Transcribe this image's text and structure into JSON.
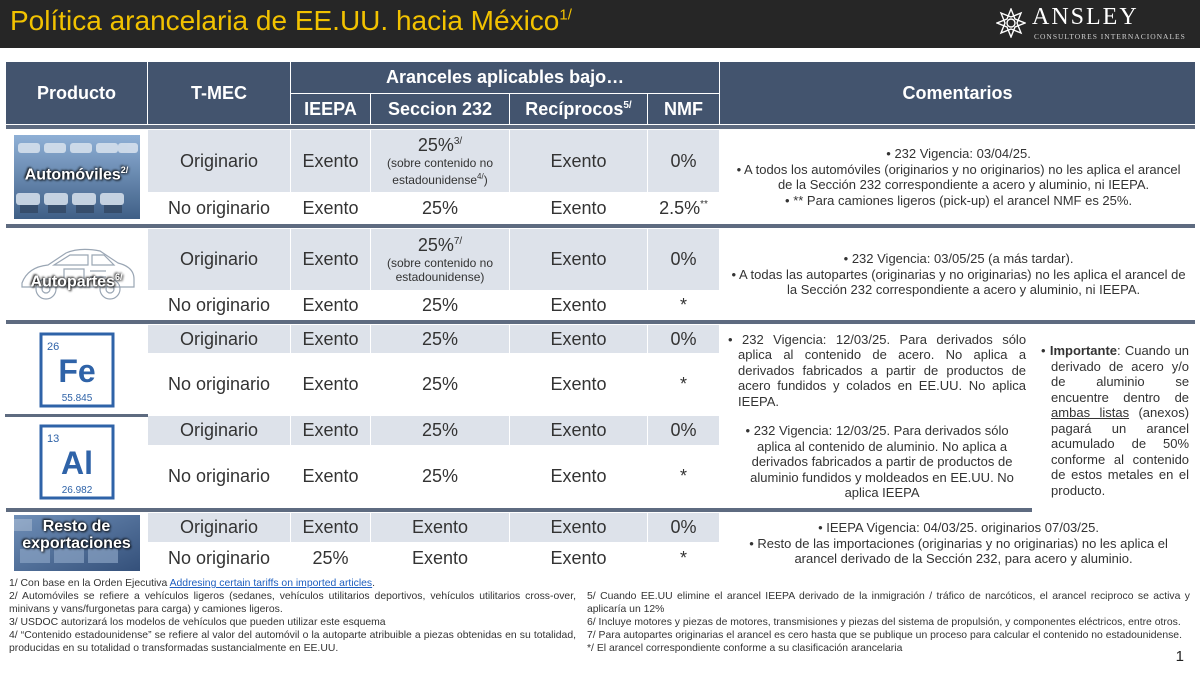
{
  "header": {
    "title": "Política arancelaria de EE.UU. hacia México",
    "title_sup": "1/",
    "logo_name": "ANSLEY",
    "logo_sub": "CONSULTORES INTERNACIONALES"
  },
  "table": {
    "headers": {
      "producto": "Producto",
      "tmec": "T-MEC",
      "group": "Aranceles aplicables bajo…",
      "ieepa": "IEEPA",
      "s232": "Seccion 232",
      "reciprocos": "Recíprocos",
      "reciprocos_sup": "5/",
      "nmf": "NMF",
      "comentarios": "Comentarios"
    },
    "autos": {
      "label": "Automóviles",
      "label_sup": "2/",
      "r1": {
        "tmec": "Originario",
        "ieepa": "Exento",
        "s232": "25%",
        "s232_sup": "3/",
        "s232_note": "(sobre contenido no estadounidense",
        "s232_note_sup": "4/",
        "s232_note_end": ")",
        "reciprocos": "Exento",
        "nmf": "0%"
      },
      "r2": {
        "tmec": "No originario",
        "ieepa": "Exento",
        "s232": "25%",
        "reciprocos": "Exento",
        "nmf": "2.5%",
        "nmf_sup": "**"
      },
      "comments": [
        "232 Vigencia: 03/04/25.",
        "A todos los automóviles (originarios y no originarios) no les aplica el arancel de la Sección 232 correspondiente a acero y aluminio, ni IEEPA.",
        "** Para camiones ligeros (pick-up) el arancel NMF es 25%."
      ]
    },
    "autopartes": {
      "label": "Autopartes",
      "label_sup": "6/",
      "r1": {
        "tmec": "Originario",
        "ieepa": "Exento",
        "s232": "25%",
        "s232_sup": "7/",
        "s232_note": "(sobre contenido no estadounidense)",
        "reciprocos": "Exento",
        "nmf": "0%"
      },
      "r2": {
        "tmec": "No originario",
        "ieepa": "Exento",
        "s232": "25%",
        "reciprocos": "Exento",
        "nmf": "*"
      },
      "comments": [
        "232 Vigencia: 03/05/25 (a más tardar).",
        "A todas las autopartes (originarias y no originarias) no les aplica el arancel de la Sección 232 correspondiente a acero y aluminio, ni IEEPA."
      ]
    },
    "acero": {
      "element_number": "26",
      "element_symbol": "Fe",
      "element_mass": "55.845",
      "r1": {
        "tmec": "Originario",
        "ieepa": "Exento",
        "s232": "25%",
        "reciprocos": "Exento",
        "nmf": "0%"
      },
      "r2": {
        "tmec": "No originario",
        "ieepa": "Exento",
        "s232": "25%",
        "reciprocos": "Exento",
        "nmf": "*"
      },
      "comment": "232 Vigencia: 12/03/25. Para derivados sólo aplica al contenido de acero. No aplica a derivados fabricados a partir de productos de acero fundidos y colados en EE.UU. No aplica IEEPA."
    },
    "aluminio": {
      "element_number": "13",
      "element_symbol": "Al",
      "element_mass": "26.982",
      "r1": {
        "tmec": "Originario",
        "ieepa": "Exento",
        "s232": "25%",
        "reciprocos": "Exento",
        "nmf": "0%"
      },
      "r2": {
        "tmec": "No originario",
        "ieepa": "Exento",
        "s232": "25%",
        "reciprocos": "Exento",
        "nmf": "*"
      },
      "comment": "232 Vigencia: 12/03/25. Para derivados sólo aplica al contenido de aluminio. No aplica a derivados fabricados a partir de productos de aluminio fundidos y moldeados en EE.UU. No aplica IEEPA"
    },
    "importante": {
      "label": "Importante",
      "text_1": ": Cuando un derivado de acero y/o de aluminio se encuentre dentro de ",
      "underlined": "ambas listas",
      "text_2": " (anexos) pagará un arancel acumulado de 50% conforme al contenido de estos metales en el producto."
    },
    "resto": {
      "label_1": "Resto de",
      "label_2": "exportaciones",
      "r1": {
        "tmec": "Originario",
        "ieepa": "Exento",
        "s232": "Exento",
        "reciprocos": "Exento",
        "nmf": "0%"
      },
      "r2": {
        "tmec": "No originario",
        "ieepa": "25%",
        "s232": "Exento",
        "reciprocos": "Exento",
        "nmf": "*"
      },
      "comments": [
        "IEEPA Vigencia: 04/03/25. originarios 07/03/25.",
        "Resto de las importaciones (originarias y no originarias) no les aplica el arancel derivado de la Sección 232, para acero y aluminio."
      ]
    }
  },
  "footnotes": {
    "n1_prefix": "1/  Con base en la Orden Ejecutiva ",
    "n1_link": "Addresing certain tariffs on imported articles",
    "n1_suffix": ".",
    "n2": "2/ Automóviles se refiere a vehículos ligeros (sedanes, vehículos utilitarios deportivos, vehículos utilitarios cross-over, minivans y vans/furgonetas para carga) y camiones ligeros.",
    "n3": "3/ USDOC autorizará los modelos de vehículos que pueden utilizar este esquema",
    "n4": "4/ “Contenido estadounidense” se refiere al valor del automóvil o la autoparte atribuible a piezas obtenidas en su totalidad, producidas en su totalidad o transformadas sustancialmente en EE.UU.",
    "n5": "5/ Cuando EE.UU elimine el arancel IEEPA derivado de la inmigración / tráfico de narcóticos, el arancel reciproco se activa y aplicaría un 12%",
    "n6": "6/ Incluye motores y piezas de motores, transmisiones y piezas del sistema de propulsión, y componentes eléctricos, entre otros.",
    "n7": "7/ Para autopartes originarias el arancel es cero hasta que se publique un proceso para calcular el contenido no estadounidense.",
    "n8": "*/ El arancel correspondiente conforme a su clasificación arancelaria"
  },
  "page_number": "1",
  "colors": {
    "header_bg": "#262626",
    "title": "#f2c200",
    "table_header": "#43546e",
    "row_shade": "#dde2ea",
    "separator": "#5e6b80"
  }
}
